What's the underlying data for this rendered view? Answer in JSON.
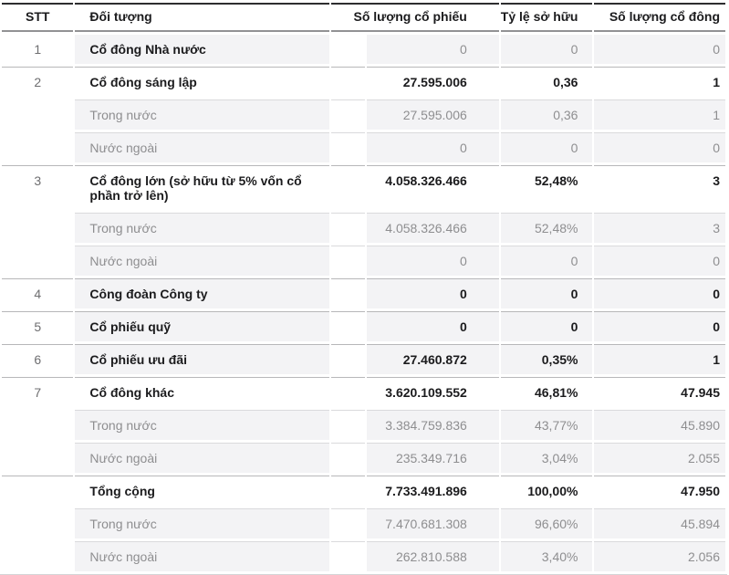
{
  "colors": {
    "text_primary": "#1b1b1d",
    "text_muted": "#8e8e90",
    "row_shade": "#f3f3f5",
    "border_dark": "#2d2d2f",
    "border_header": "#929294",
    "border_group": "#b7b7b9",
    "border_sub": "#dadadc"
  },
  "table": {
    "columns": [
      {
        "key": "stt",
        "label": "STT"
      },
      {
        "key": "doi_tuong",
        "label": "Đối tượng"
      },
      {
        "key": "so_luong_co_phieu",
        "label": "Số lượng cổ phiếu"
      },
      {
        "key": "ty_le_so_huu",
        "label": "Tỷ lệ sở hữu"
      },
      {
        "key": "so_luong_co_dong",
        "label": "Số lượng cổ đông"
      }
    ],
    "rows": [
      {
        "stt": "1",
        "stt_rowspan": 1,
        "label": "Cổ đông Nhà nước",
        "type": "main",
        "shaded": true,
        "values_bold": false,
        "shares": "0",
        "ratio": "0",
        "holders": "0"
      },
      {
        "stt": "2",
        "stt_rowspan": 3,
        "label": "Cổ đông sáng lập",
        "type": "main",
        "shaded": false,
        "values_bold": true,
        "shares": "27.595.006",
        "ratio": "0,36",
        "holders": "1"
      },
      {
        "label": "Trong nước",
        "type": "sub",
        "shaded": true,
        "shares": "27.595.006",
        "ratio": "0,36",
        "holders": "1"
      },
      {
        "label": "Nước ngoài",
        "type": "sub",
        "shaded": true,
        "shares": "0",
        "ratio": "0",
        "holders": "0"
      },
      {
        "stt": "3",
        "stt_rowspan": 3,
        "label": "Cổ đông lớn (sở hữu từ 5% vốn cổ phần trở lên)",
        "type": "main",
        "shaded": false,
        "values_bold": true,
        "shares": "4.058.326.466",
        "ratio": "52,48%",
        "holders": "3"
      },
      {
        "label": "Trong nước",
        "type": "sub",
        "shaded": true,
        "shares": "4.058.326.466",
        "ratio": "52,48%",
        "holders": "3"
      },
      {
        "label": "Nước ngoài",
        "type": "sub",
        "shaded": true,
        "shares": "0",
        "ratio": "0",
        "holders": "0"
      },
      {
        "stt": "4",
        "stt_rowspan": 1,
        "label": "Công đoàn Công ty",
        "type": "main",
        "shaded": true,
        "values_bold": true,
        "shares": "0",
        "ratio": "0",
        "holders": "0"
      },
      {
        "stt": "5",
        "stt_rowspan": 1,
        "label": "Cổ phiếu quỹ",
        "type": "main",
        "shaded": true,
        "values_bold": true,
        "shares": "0",
        "ratio": "0",
        "holders": "0"
      },
      {
        "stt": "6",
        "stt_rowspan": 1,
        "label": "Cổ phiếu ưu đãi",
        "type": "main",
        "shaded": true,
        "values_bold": true,
        "shares": "27.460.872",
        "ratio": "0,35%",
        "holders": "1"
      },
      {
        "stt": "7",
        "stt_rowspan": 3,
        "label": "Cổ đông khác",
        "type": "main",
        "shaded": false,
        "values_bold": true,
        "shares": "3.620.109.552",
        "ratio": "46,81%",
        "holders": "47.945"
      },
      {
        "label": "Trong nước",
        "type": "sub",
        "shaded": true,
        "shares": "3.384.759.836",
        "ratio": "43,77%",
        "holders": "45.890"
      },
      {
        "label": "Nước ngoài",
        "type": "sub",
        "shaded": true,
        "shares": "235.349.716",
        "ratio": "3,04%",
        "holders": "2.055"
      },
      {
        "stt": "",
        "stt_rowspan": 3,
        "label": "Tổng cộng",
        "type": "main",
        "shaded": false,
        "values_bold": true,
        "shares": "7.733.491.896",
        "ratio": "100,00%",
        "holders": "47.950"
      },
      {
        "label": "Trong nước",
        "type": "sub",
        "shaded": true,
        "shares": "7.470.681.308",
        "ratio": "96,60%",
        "holders": "45.894"
      },
      {
        "label": "Nước ngoài",
        "type": "sub",
        "shaded": true,
        "shares": "262.810.588",
        "ratio": "3,40%",
        "holders": "2.056"
      }
    ]
  }
}
